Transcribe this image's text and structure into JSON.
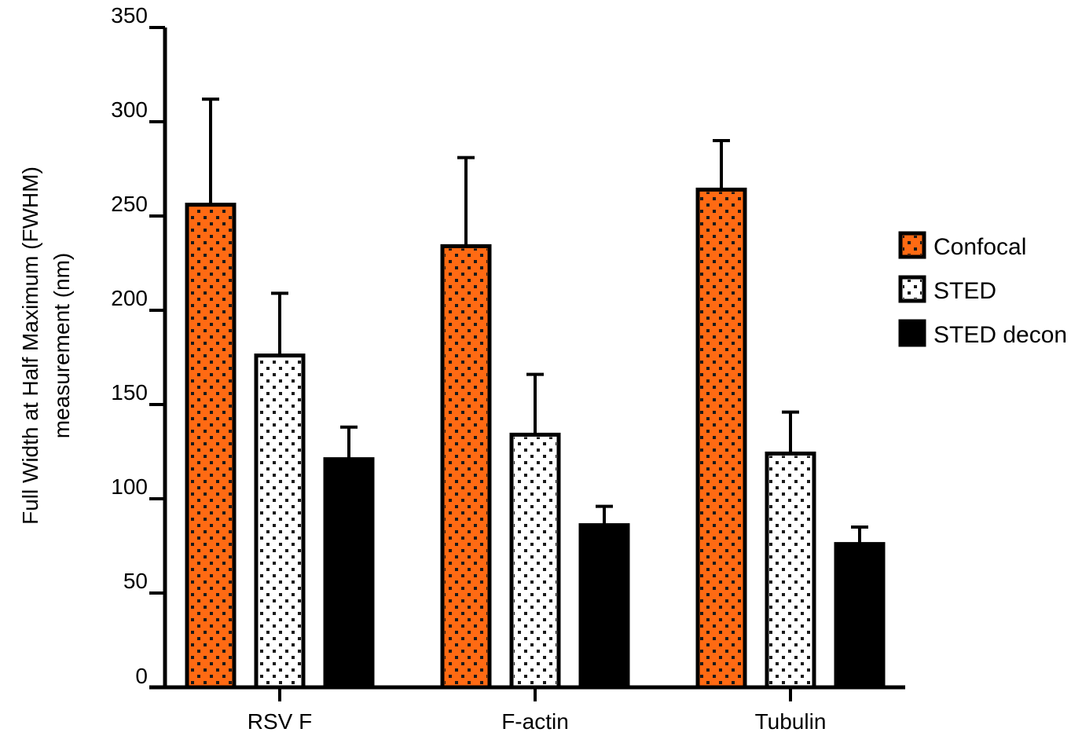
{
  "chart_data": {
    "type": "bar",
    "title": "",
    "xlabel": "",
    "ylabel_lines": [
      "Full Width at Half Maximum (FWHM)",
      "measurement (nm)"
    ],
    "ylim": [
      0,
      350
    ],
    "yticks": [
      0,
      50,
      100,
      150,
      200,
      250,
      300,
      350
    ],
    "categories": [
      "RSV F",
      "F-actin",
      "Tubulin"
    ],
    "series": [
      {
        "name": "Confocal",
        "values": [
          256,
          234,
          264
        ],
        "errors": [
          56,
          47,
          26
        ],
        "color": "#ff6a13",
        "pattern": "dots-dark"
      },
      {
        "name": "STED",
        "values": [
          176,
          134,
          124
        ],
        "errors": [
          33,
          32,
          22
        ],
        "color": "#ffffff",
        "pattern": "dots-dark"
      },
      {
        "name": "STED decon",
        "values": [
          121,
          86,
          76
        ],
        "errors": [
          17,
          10,
          9
        ],
        "color": "#000000",
        "pattern": "none"
      }
    ],
    "legend_position": "right",
    "grid": false
  }
}
